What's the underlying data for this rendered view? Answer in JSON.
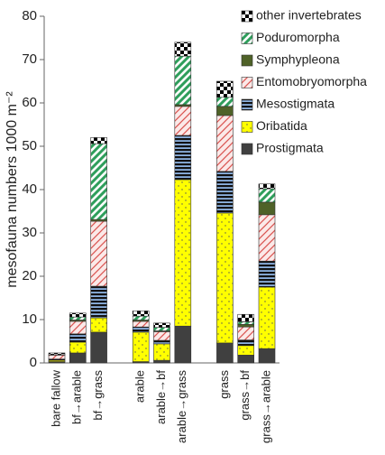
{
  "chart_data": {
    "type": "stacked-bar",
    "y_label": "mesofauna numbers 1000 m⁻²",
    "categories": [
      "bare fallow",
      "bf→arable",
      "bf→grass",
      null,
      "arable",
      "arable→bf",
      "arable→grass",
      null,
      "grass",
      "grass→bf",
      "grass→arable"
    ],
    "series": [
      {
        "name": "Prostigmata",
        "color": "#404040",
        "pattern": "solid",
        "values": [
          0.3,
          2.3,
          7.1,
          null,
          0.3,
          0.6,
          8.5,
          null,
          4.6,
          1.8,
          3.3
        ]
      },
      {
        "name": "Oribatida",
        "color": "#ffff00",
        "pattern": "dots",
        "values": [
          0.3,
          2.5,
          3.3,
          null,
          6.8,
          3.8,
          33.8,
          null,
          30.0,
          2.2,
          14.2
        ]
      },
      {
        "name": "Mesostigmata",
        "color": "#8db3e2",
        "pattern": "hstripes",
        "values": [
          0.3,
          1.9,
          7.3,
          null,
          1.2,
          0.8,
          10.2,
          null,
          9.6,
          1.3,
          6.0
        ]
      },
      {
        "name": "Entomobryomorpha",
        "color": "#d9534f",
        "pattern": "hatch",
        "values": [
          0.9,
          2.9,
          15.0,
          null,
          1.3,
          2.0,
          6.7,
          null,
          12.9,
          3.0,
          10.7
        ]
      },
      {
        "name": "Symphypleona",
        "color": "#4f6228",
        "pattern": "solid",
        "values": [
          0,
          0.3,
          0.4,
          null,
          0.3,
          0.2,
          0.4,
          null,
          2.1,
          0.6,
          2.9
        ]
      },
      {
        "name": "Poduromorpha",
        "color": "#2e9e5b",
        "pattern": "stripes",
        "values": [
          0.1,
          0.7,
          17.5,
          null,
          0.9,
          0.8,
          11.2,
          null,
          2.1,
          0.6,
          3.1
        ]
      },
      {
        "name": "other invertebrates",
        "color": "#000000",
        "pattern": "checker",
        "values": [
          0.4,
          0.9,
          1.4,
          null,
          1.2,
          1.0,
          3.2,
          null,
          3.7,
          1.7,
          1.1
        ]
      }
    ],
    "ylim": [
      0,
      80
    ],
    "yticks": [
      0,
      10,
      20,
      30,
      40,
      50,
      60,
      70,
      80
    ],
    "legend": "top-right",
    "grid": false
  }
}
